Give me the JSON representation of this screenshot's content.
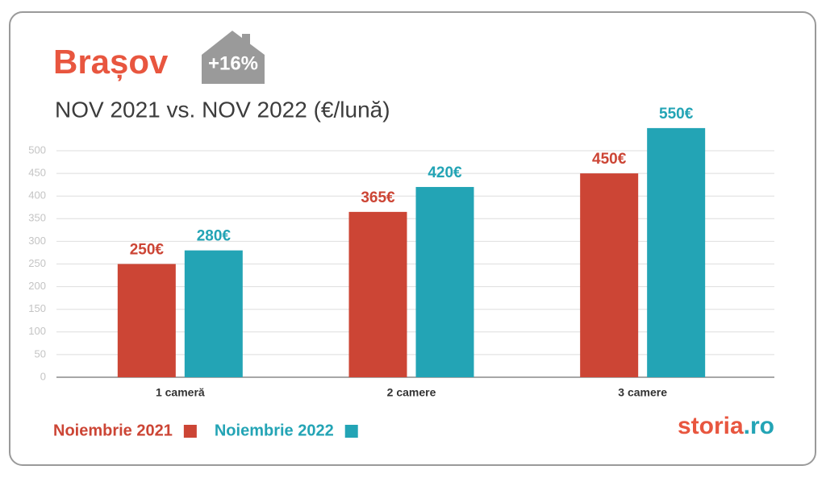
{
  "chart_data": {
    "type": "bar",
    "title": "Brașov",
    "badge": "+16%",
    "subtitle": "NOV 2021 vs. NOV 2022 (€/lună)",
    "categories": [
      "1 cameră",
      "2 camere",
      "3 camere"
    ],
    "series": [
      {
        "name": "Noiembrie 2021",
        "color": "#cc4535",
        "values": [
          250,
          365,
          450
        ],
        "value_labels": [
          "250€",
          "365€",
          "450€"
        ]
      },
      {
        "name": "Noiembrie 2022",
        "color": "#23a4b5",
        "values": [
          280,
          420,
          550
        ],
        "value_labels": [
          "280€",
          "420€",
          "550€"
        ]
      }
    ],
    "ylim": [
      0,
      500
    ],
    "yticks": [
      0,
      50,
      100,
      150,
      200,
      250,
      300,
      350,
      400,
      450,
      500
    ],
    "grid": true,
    "brand": [
      "storia",
      ".ro"
    ]
  }
}
